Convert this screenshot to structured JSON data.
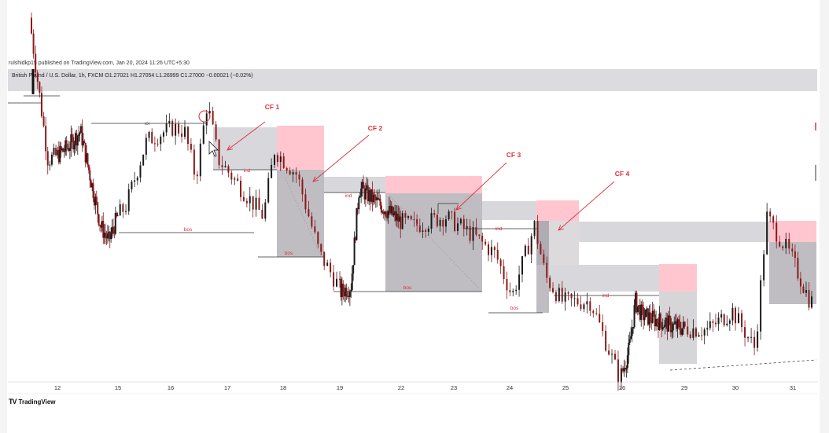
{
  "header": {
    "published": "rulshidkp15 published on TradingView.com, Jan 20, 2024 11:26 UTC+5:30",
    "symbol_info": "British Pound / U.S. Dollar, 1h, FXCM  O1.27021  H1.27054  L1.26999  C1.27000  −0.00021 (−0.02%)"
  },
  "footer": {
    "brand": "TradingView",
    "logo_glyph": "TV"
  },
  "colors": {
    "candle_up": "#1a1a1a",
    "candle_down": "#8b1a1a",
    "zone_pink": "#ffc0cb",
    "zone_grey": "#8a8690",
    "zone_light": "#d8d7dc",
    "annotation_red": "#e0303a"
  },
  "chart_data": {
    "type": "candlestick",
    "x_ticks": [
      "12",
      "15",
      "16",
      "17",
      "18",
      "19",
      "22",
      "23",
      "24",
      "25",
      "26",
      "29",
      "30",
      "31"
    ],
    "ylim": [
      1.262,
      1.282
    ],
    "grid": false,
    "path_keypoints": [
      {
        "day": 11.3,
        "price": 1.2815
      },
      {
        "day": 11.6,
        "price": 1.277
      },
      {
        "day": 11.8,
        "price": 1.274
      },
      {
        "day": 12.6,
        "price": 1.2747
      },
      {
        "day": 13.2,
        "price": 1.2755
      },
      {
        "day": 13.5,
        "price": 1.274
      },
      {
        "day": 14.2,
        "price": 1.2705
      },
      {
        "day": 14.6,
        "price": 1.2697
      },
      {
        "day": 15.2,
        "price": 1.2715
      },
      {
        "day": 15.6,
        "price": 1.275
      },
      {
        "day": 16.1,
        "price": 1.2757
      },
      {
        "day": 16.3,
        "price": 1.2755
      },
      {
        "day": 16.5,
        "price": 1.273
      },
      {
        "day": 16.7,
        "price": 1.277
      },
      {
        "day": 16.9,
        "price": 1.274
      },
      {
        "day": 17.3,
        "price": 1.2725
      },
      {
        "day": 17.7,
        "price": 1.271
      },
      {
        "day": 17.9,
        "price": 1.2745
      },
      {
        "day": 18.3,
        "price": 1.2732
      },
      {
        "day": 18.7,
        "price": 1.269
      },
      {
        "day": 19.1,
        "price": 1.267
      },
      {
        "day": 19.6,
        "price": 1.2673
      },
      {
        "day": 20.0,
        "price": 1.2725
      },
      {
        "day": 22.3,
        "price": 1.2705
      },
      {
        "day": 22.9,
        "price": 1.271
      },
      {
        "day": 23.4,
        "price": 1.27
      },
      {
        "day": 23.8,
        "price": 1.269
      },
      {
        "day": 24.1,
        "price": 1.2668
      },
      {
        "day": 24.5,
        "price": 1.2705
      },
      {
        "day": 24.7,
        "price": 1.2678
      },
      {
        "day": 25.0,
        "price": 1.2665
      },
      {
        "day": 25.5,
        "price": 1.2665
      },
      {
        "day": 26.0,
        "price": 1.2625
      },
      {
        "day": 26.4,
        "price": 1.264
      },
      {
        "day": 26.7,
        "price": 1.2665
      },
      {
        "day": 27.0,
        "price": 1.2658
      },
      {
        "day": 28.5,
        "price": 1.2652
      },
      {
        "day": 29.5,
        "price": 1.265
      },
      {
        "day": 30.0,
        "price": 1.266
      },
      {
        "day": 30.4,
        "price": 1.264
      },
      {
        "day": 30.6,
        "price": 1.271
      },
      {
        "day": 31.0,
        "price": 1.269
      },
      {
        "day": 31.4,
        "price": 1.2665
      }
    ],
    "annotations": [
      {
        "text": "CF 1",
        "color": "#e0303a"
      },
      {
        "text": "CF 2",
        "color": "#e0303a"
      },
      {
        "text": "CF 3",
        "color": "#e0303a"
      },
      {
        "text": "CF 4",
        "color": "#e0303a"
      }
    ],
    "labels": [
      {
        "text": "xx"
      },
      {
        "text": "bos"
      },
      {
        "text": "ind"
      },
      {
        "text": "bos"
      },
      {
        "text": "ind"
      },
      {
        "text": "bos"
      },
      {
        "text": "ind"
      },
      {
        "text": "bos"
      },
      {
        "text": "ind"
      }
    ]
  }
}
